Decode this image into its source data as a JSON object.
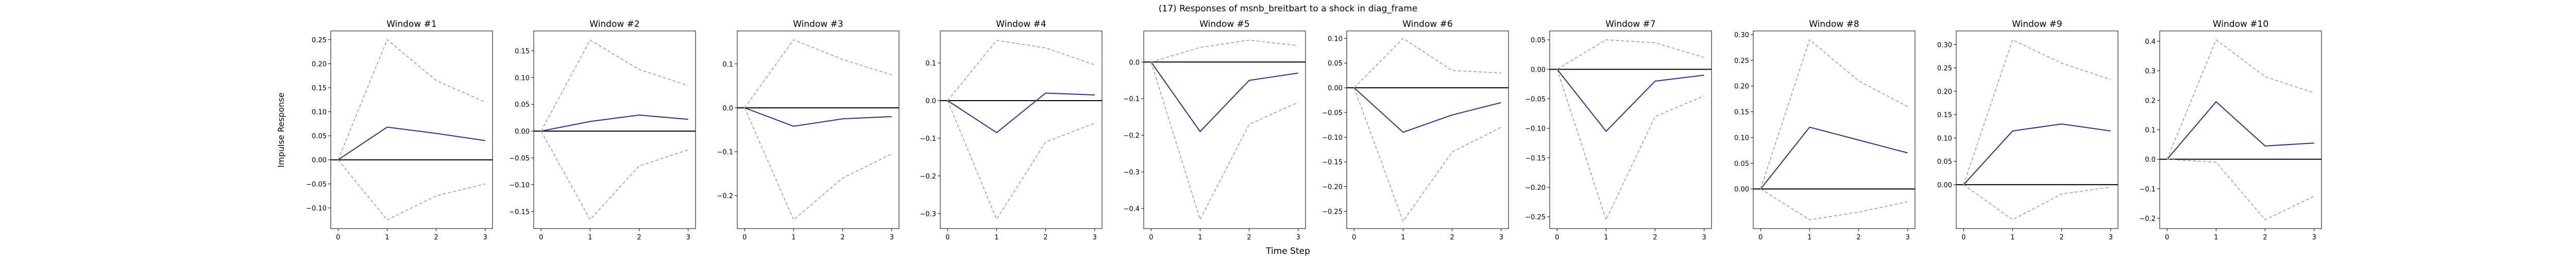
{
  "figure": {
    "suptitle": "(17) Responses of msnb_breitbart to a shock in diag_frame",
    "xlabel": "Time Step",
    "ylabel": "Impulse Response"
  },
  "colors": {
    "response": "#2f2f8f",
    "band": "#999999",
    "zero": "#000000",
    "axis": "#000000"
  },
  "chart_data": [
    {
      "type": "line",
      "title": "Window #1",
      "x": [
        0,
        1,
        2,
        3
      ],
      "xticks": [
        0,
        1,
        2,
        3
      ],
      "xlim": [
        -0.15,
        3.15
      ],
      "series": [
        {
          "role": "response",
          "values": [
            0,
            0.068,
            0.055,
            0.04
          ]
        },
        {
          "role": "upper",
          "values": [
            0,
            0.25,
            0.165,
            0.12
          ]
        },
        {
          "role": "lower",
          "values": [
            0,
            -0.125,
            -0.075,
            -0.05
          ]
        }
      ],
      "ylim": [
        -0.143,
        0.268
      ],
      "yticks": [
        -0.1,
        -0.05,
        0.0,
        0.05,
        0.1,
        0.15,
        0.2,
        0.25
      ],
      "ytick_labels": [
        "−0.10",
        "−0.05",
        "0.00",
        "0.05",
        "0.10",
        "0.15",
        "0.20",
        "0.25"
      ]
    },
    {
      "type": "line",
      "title": "Window #2",
      "x": [
        0,
        1,
        2,
        3
      ],
      "xticks": [
        0,
        1,
        2,
        3
      ],
      "xlim": [
        -0.15,
        3.15
      ],
      "series": [
        {
          "role": "response",
          "values": [
            0,
            0.018,
            0.03,
            0.022
          ]
        },
        {
          "role": "upper",
          "values": [
            0,
            0.17,
            0.115,
            0.085
          ]
        },
        {
          "role": "lower",
          "values": [
            0,
            -0.165,
            -0.065,
            -0.035
          ]
        }
      ],
      "ylim": [
        -0.182,
        0.187
      ],
      "yticks": [
        -0.15,
        -0.1,
        -0.05,
        0.0,
        0.05,
        0.1,
        0.15
      ],
      "ytick_labels": [
        "−0.15",
        "−0.10",
        "−0.05",
        "0.00",
        "0.05",
        "0.10",
        "0.15"
      ]
    },
    {
      "type": "line",
      "title": "Window #3",
      "x": [
        0,
        1,
        2,
        3
      ],
      "xticks": [
        0,
        1,
        2,
        3
      ],
      "xlim": [
        -0.15,
        3.15
      ],
      "series": [
        {
          "role": "response",
          "values": [
            0,
            -0.042,
            -0.025,
            -0.02
          ]
        },
        {
          "role": "upper",
          "values": [
            0,
            0.155,
            0.11,
            0.075
          ]
        },
        {
          "role": "lower",
          "values": [
            0,
            -0.255,
            -0.16,
            -0.105
          ]
        }
      ],
      "ylim": [
        -0.275,
        0.175
      ],
      "yticks": [
        -0.2,
        -0.1,
        0.0,
        0.1
      ],
      "ytick_labels": [
        "−0.2",
        "−0.1",
        "0.0",
        "0.1"
      ]
    },
    {
      "type": "line",
      "title": "Window #4",
      "x": [
        0,
        1,
        2,
        3
      ],
      "xticks": [
        0,
        1,
        2,
        3
      ],
      "xlim": [
        -0.15,
        3.15
      ],
      "series": [
        {
          "role": "response",
          "values": [
            0,
            -0.085,
            0.02,
            0.015
          ]
        },
        {
          "role": "upper",
          "values": [
            0,
            0.16,
            0.14,
            0.095
          ]
        },
        {
          "role": "lower",
          "values": [
            0,
            -0.315,
            -0.11,
            -0.06
          ]
        }
      ],
      "ylim": [
        -0.34,
        0.185
      ],
      "yticks": [
        -0.3,
        -0.2,
        -0.1,
        0.0,
        0.1
      ],
      "ytick_labels": [
        "−0.3",
        "−0.2",
        "−0.1",
        "0.0",
        "0.1"
      ]
    },
    {
      "type": "line",
      "title": "Window #5",
      "x": [
        0,
        1,
        2,
        3
      ],
      "xticks": [
        0,
        1,
        2,
        3
      ],
      "xlim": [
        -0.15,
        3.15
      ],
      "series": [
        {
          "role": "response",
          "values": [
            0,
            -0.19,
            -0.05,
            -0.03
          ]
        },
        {
          "role": "upper",
          "values": [
            0,
            0.04,
            0.06,
            0.045
          ]
        },
        {
          "role": "lower",
          "values": [
            0,
            -0.43,
            -0.17,
            -0.11
          ]
        }
      ],
      "ylim": [
        -0.455,
        0.085
      ],
      "yticks": [
        -0.4,
        -0.3,
        -0.2,
        -0.1,
        0.0
      ],
      "ytick_labels": [
        "−0.4",
        "−0.3",
        "−0.2",
        "−0.1",
        "0.0"
      ]
    },
    {
      "type": "line",
      "title": "Window #6",
      "x": [
        0,
        1,
        2,
        3
      ],
      "xticks": [
        0,
        1,
        2,
        3
      ],
      "xlim": [
        -0.15,
        3.15
      ],
      "series": [
        {
          "role": "response",
          "values": [
            0,
            -0.09,
            -0.055,
            -0.03
          ]
        },
        {
          "role": "upper",
          "values": [
            0,
            0.1,
            0.035,
            0.03
          ]
        },
        {
          "role": "lower",
          "values": [
            0,
            -0.27,
            -0.13,
            -0.08
          ]
        }
      ],
      "ylim": [
        -0.285,
        0.115
      ],
      "yticks": [
        -0.25,
        -0.2,
        -0.15,
        -0.1,
        -0.05,
        0.0,
        0.05,
        0.1
      ],
      "ytick_labels": [
        "−0.25",
        "−0.20",
        "−0.15",
        "−0.10",
        "−0.05",
        "0.00",
        "0.05",
        "0.10"
      ]
    },
    {
      "type": "line",
      "title": "Window #7",
      "x": [
        0,
        1,
        2,
        3
      ],
      "xticks": [
        0,
        1,
        2,
        3
      ],
      "xlim": [
        -0.15,
        3.15
      ],
      "series": [
        {
          "role": "response",
          "values": [
            0,
            -0.105,
            -0.02,
            -0.01
          ]
        },
        {
          "role": "upper",
          "values": [
            0,
            0.05,
            0.045,
            0.02
          ]
        },
        {
          "role": "lower",
          "values": [
            0,
            -0.255,
            -0.08,
            -0.045
          ]
        }
      ],
      "ylim": [
        -0.27,
        0.065
      ],
      "yticks": [
        -0.25,
        -0.2,
        -0.15,
        -0.1,
        -0.05,
        0.0,
        0.05
      ],
      "ytick_labels": [
        "−0.25",
        "−0.20",
        "−0.15",
        "−0.10",
        "−0.05",
        "0.00",
        "0.05"
      ]
    },
    {
      "type": "line",
      "title": "Window #8",
      "x": [
        0,
        1,
        2,
        3
      ],
      "xticks": [
        0,
        1,
        2,
        3
      ],
      "xlim": [
        -0.15,
        3.15
      ],
      "series": [
        {
          "role": "response",
          "values": [
            0,
            0.12,
            0.095,
            0.07
          ]
        },
        {
          "role": "upper",
          "values": [
            0,
            0.29,
            0.21,
            0.16
          ]
        },
        {
          "role": "lower",
          "values": [
            0,
            -0.06,
            -0.045,
            -0.025
          ]
        }
      ],
      "ylim": [
        -0.077,
        0.307
      ],
      "yticks": [
        0.0,
        0.05,
        0.1,
        0.15,
        0.2,
        0.25,
        0.3
      ],
      "ytick_labels": [
        "0.00",
        "0.05",
        "0.10",
        "0.15",
        "0.20",
        "0.25",
        "0.30"
      ]
    },
    {
      "type": "line",
      "title": "Window #9",
      "x": [
        0,
        1,
        2,
        3
      ],
      "xticks": [
        0,
        1,
        2,
        3
      ],
      "xlim": [
        -0.15,
        3.15
      ],
      "series": [
        {
          "role": "response",
          "values": [
            0,
            0.115,
            0.13,
            0.115
          ]
        },
        {
          "role": "upper",
          "values": [
            0,
            0.31,
            0.26,
            0.225
          ]
        },
        {
          "role": "lower",
          "values": [
            0,
            -0.075,
            -0.02,
            -0.005
          ]
        }
      ],
      "ylim": [
        -0.094,
        0.329
      ],
      "yticks": [
        0.0,
        0.05,
        0.1,
        0.15,
        0.2,
        0.25,
        0.3
      ],
      "ytick_labels": [
        "0.00",
        "0.05",
        "0.10",
        "0.15",
        "0.20",
        "0.25",
        "0.30"
      ]
    },
    {
      "type": "line",
      "title": "Window #10",
      "x": [
        0,
        1,
        2,
        3
      ],
      "xticks": [
        0,
        1,
        2,
        3
      ],
      "xlim": [
        -0.15,
        3.15
      ],
      "series": [
        {
          "role": "response",
          "values": [
            0,
            0.195,
            0.045,
            0.055
          ]
        },
        {
          "role": "upper",
          "values": [
            0,
            0.405,
            0.28,
            0.225
          ]
        },
        {
          "role": "lower",
          "values": [
            0,
            -0.01,
            -0.205,
            -0.125
          ]
        }
      ],
      "ylim": [
        -0.235,
        0.435
      ],
      "yticks": [
        -0.2,
        -0.1,
        0.0,
        0.1,
        0.2,
        0.3,
        0.4
      ],
      "ytick_labels": [
        "−0.2",
        "−0.1",
        "0.0",
        "0.1",
        "0.2",
        "0.3",
        "0.4"
      ]
    }
  ]
}
